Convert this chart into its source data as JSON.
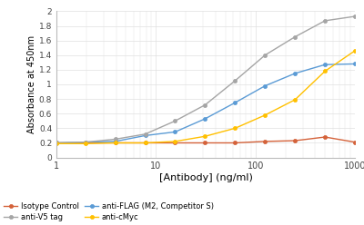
{
  "x_values": [
    1,
    1.95,
    3.9,
    7.8,
    15.6,
    31.25,
    62.5,
    125,
    250,
    500,
    1000
  ],
  "isotype_control": [
    0.2,
    0.2,
    0.2,
    0.2,
    0.2,
    0.2,
    0.2,
    0.22,
    0.23,
    0.28,
    0.21
  ],
  "anti_flag": [
    0.2,
    0.21,
    0.22,
    0.3,
    0.35,
    0.53,
    0.75,
    0.98,
    1.15,
    1.27,
    1.28
  ],
  "anti_v5": [
    0.2,
    0.21,
    0.25,
    0.32,
    0.5,
    0.72,
    1.05,
    1.4,
    1.65,
    1.87,
    1.93
  ],
  "anti_cmyc": [
    0.19,
    0.19,
    0.2,
    0.2,
    0.22,
    0.29,
    0.4,
    0.58,
    0.79,
    1.18,
    1.46
  ],
  "colors": {
    "isotype_control": "#d4623a",
    "anti_flag": "#5b9bd5",
    "anti_v5": "#a5a5a5",
    "anti_cmyc": "#ffc000"
  },
  "legend_labels": {
    "isotype_control": "Isotype Control",
    "anti_flag": "anti-FLAG (M2, Competitor S)",
    "anti_v5": "anti-V5 tag",
    "anti_cmyc": "anti-cMyc"
  },
  "xlabel": "[Antibody] (ng/ml)",
  "ylabel": "Absorbance at 450nm",
  "xlim": [
    1,
    1000
  ],
  "ylim": [
    0,
    2.0
  ],
  "yticks": [
    0,
    0.2,
    0.4,
    0.6,
    0.8,
    1.0,
    1.2,
    1.4,
    1.6,
    1.8,
    2.0
  ],
  "ytick_labels": [
    "0",
    "0.2",
    "0.4",
    "0.6",
    "0.8",
    "1",
    "1.2",
    "1.4",
    "1.6",
    "1.8",
    "2"
  ],
  "xticks": [
    1,
    10,
    100,
    1000
  ],
  "xtick_labels": [
    "1",
    "10",
    "100",
    "1000"
  ],
  "background_color": "#ffffff",
  "grid_color": "#e0e0e0",
  "legend_order": [
    0,
    2,
    1,
    3
  ]
}
